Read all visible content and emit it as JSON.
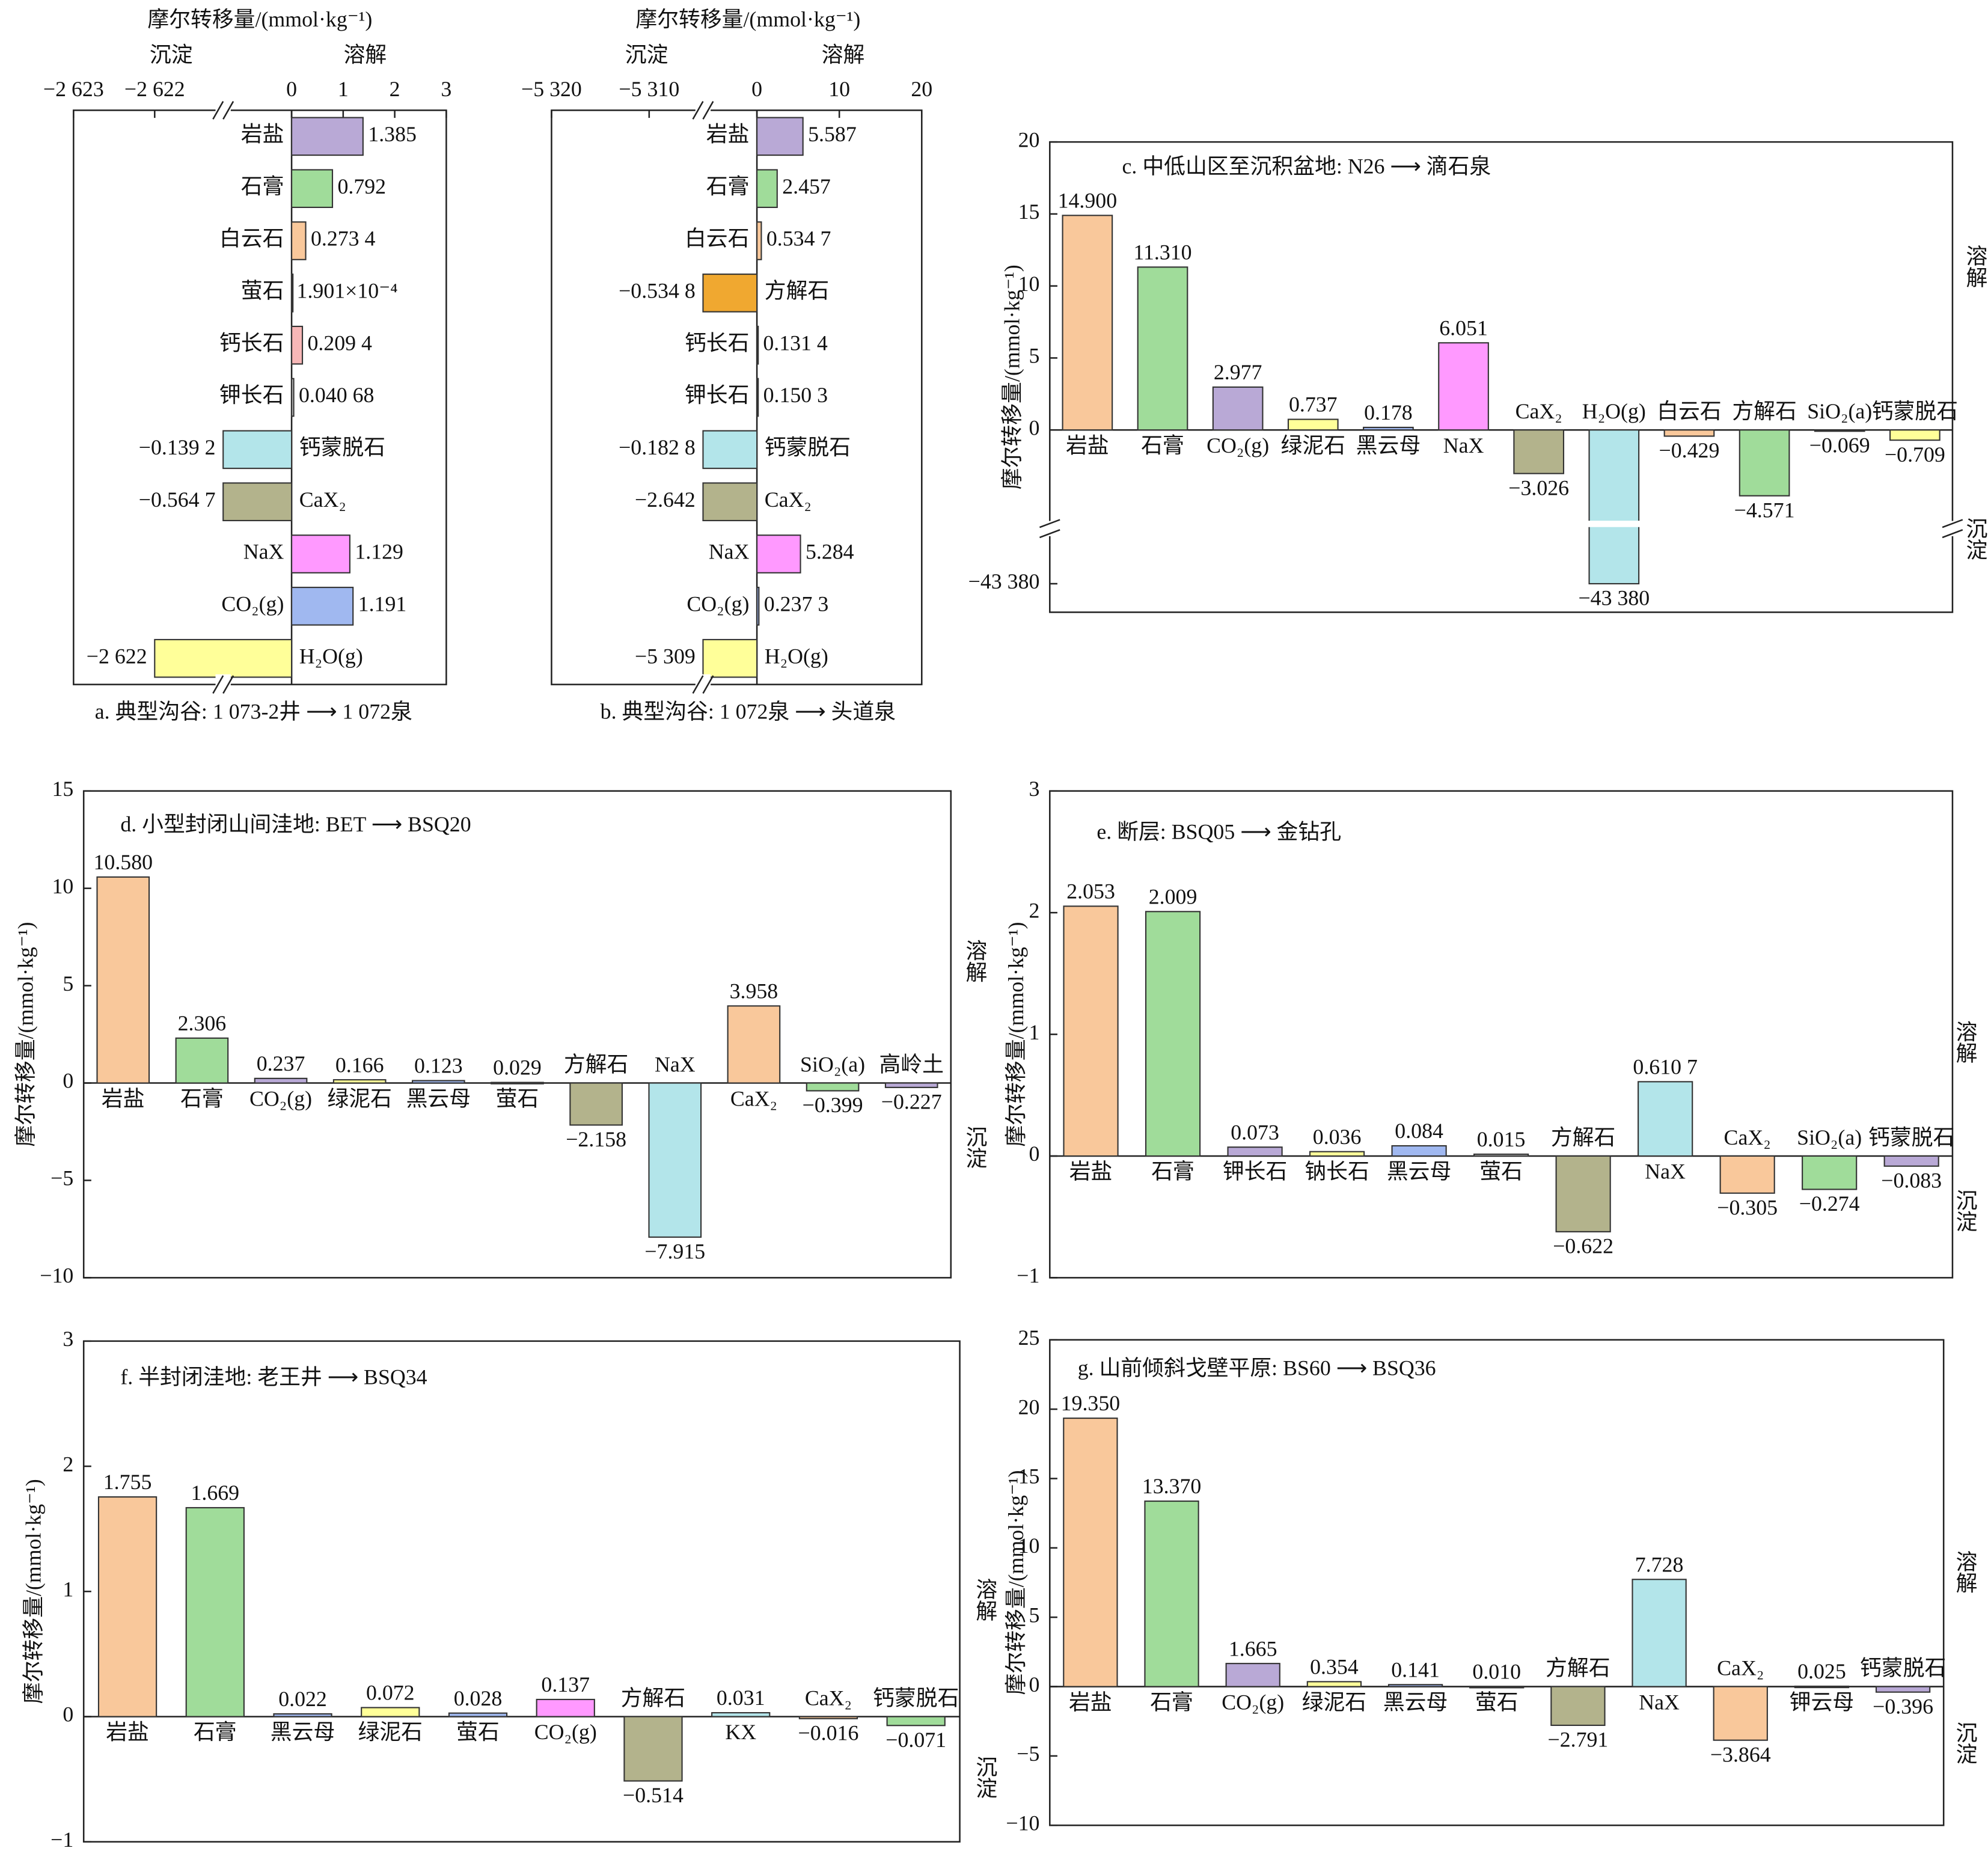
{
  "chart_data": [
    {
      "type": "barh",
      "title": "a. 典型沟谷: 1 073-2井 ⟶ 1 072泉",
      "xlabel": "摩尔转移量/(mmol·kg⁻¹)",
      "annotations": [
        "沉淀",
        "溶解"
      ],
      "categories": [
        "岩盐",
        "石膏",
        "白云石",
        "萤石",
        "钙长石",
        "钾长石",
        "钙蒙脱石",
        "CaX₂",
        "NaX",
        "CO₂(g)",
        "H₂O(g)"
      ],
      "values": [
        1.385,
        0.792,
        0.2734,
        0.0001901,
        0.2094,
        0.04068,
        -0.1392,
        -0.5647,
        1.129,
        1.191,
        -2622
      ],
      "value_labels": [
        "1.385",
        "0.792",
        "0.273 4",
        "1.901×10⁻⁴",
        "0.209 4",
        "0.040 68",
        "−0.139 2",
        "−0.564 7",
        "1.129",
        "1.191",
        "−2 622"
      ],
      "colors": [
        "#b9a9d6",
        "#a0dc9a",
        "#f9c89b",
        "#8fb3e8",
        "#f7b7b7",
        "#cccccc",
        "#b3e5ea",
        "#b3b38c",
        "#ff99ff",
        "#a0b8f0",
        "#ffff99"
      ],
      "xlim": [
        -2623,
        3
      ],
      "xbreak": [
        -2622,
        0
      ],
      "xticks": [
        {
          "value": -2623,
          "label": "−2 623"
        },
        {
          "value": -2622,
          "label": "−2 622"
        },
        0,
        1,
        2,
        3
      ]
    },
    {
      "type": "barh",
      "title": "b. 典型沟谷: 1 072泉 ⟶ 头道泉",
      "xlabel": "摩尔转移量/(mmol·kg⁻¹)",
      "annotations": [
        "沉淀",
        "溶解"
      ],
      "categories": [
        "岩盐",
        "石膏",
        "白云石",
        "方解石",
        "钙长石",
        "钾长石",
        "钙蒙脱石",
        "CaX₂",
        "NaX",
        "CO₂(g)",
        "H₂O(g)"
      ],
      "values": [
        5.587,
        2.457,
        0.5347,
        -0.5348,
        0.1314,
        0.1503,
        -0.1828,
        -2.642,
        5.284,
        0.2373,
        -5309
      ],
      "value_labels": [
        "5.587",
        "2.457",
        "0.534 7",
        "−0.534 8",
        "0.131 4",
        "0.150 3",
        "−0.182 8",
        "−2.642",
        "5.284",
        "0.237 3",
        "−5 309"
      ],
      "colors": [
        "#b9a9d6",
        "#a0dc9a",
        "#f9c89b",
        "#f0a830",
        "#f7b7b7",
        "#cccccc",
        "#b3e5ea",
        "#b3b38c",
        "#ff99ff",
        "#a0b8f0",
        "#ffff99"
      ],
      "xlim": [
        -5320,
        20
      ],
      "xbreak": [
        -5310,
        0
      ],
      "xticks": [
        {
          "value": -5320,
          "label": "−5 320"
        },
        {
          "value": -5310,
          "label": "−5 310"
        },
        0,
        10,
        20
      ]
    },
    {
      "type": "bar",
      "title": "c. 中低山区至沉积盆地: N26 ⟶ 滴石泉",
      "ylabel": "摩尔转移量/(mmol·kg⁻¹)",
      "annotations": [
        "溶解",
        "沉淀"
      ],
      "categories": [
        "岩盐",
        "石膏",
        "CO₂(g)",
        "绿泥石",
        "黑云母",
        "NaX",
        "CaX₂",
        "H₂O(g)",
        "白云石",
        "方解石",
        "SiO₂(a)",
        "钙蒙脱石"
      ],
      "values": [
        14.9,
        11.31,
        2.977,
        0.737,
        0.178,
        6.051,
        -3.026,
        -43380,
        -0.429,
        -4.571,
        -0.069,
        -0.709
      ],
      "value_labels": [
        "14.900",
        "11.310",
        "2.977",
        "0.737",
        "0.178",
        "6.051",
        "−3.026",
        "−43 380",
        "−0.429",
        "−4.571",
        "−0.069",
        "−0.709"
      ],
      "colors": [
        "#f9c89b",
        "#a0dc9a",
        "#b9a9d6",
        "#ffff99",
        "#a0b8f0",
        "#ff99ff",
        "#b3b38c",
        "#b3e5ea",
        "#f9c89b",
        "#a0dc9a",
        "#a0b8f0",
        "#ffff99"
      ],
      "ylim": [
        -43382,
        20
      ],
      "ybreak": [
        -43378,
        -5
      ],
      "yticks": [
        {
          "value": -43380,
          "label": "−43 380"
        },
        0,
        5,
        10,
        15,
        20
      ]
    },
    {
      "type": "bar",
      "title": "d. 小型封闭山间洼地: BET ⟶ BSQ20",
      "ylabel": "摩尔转移量/(mmol·kg⁻¹)",
      "annotations": [
        "溶解",
        "沉淀"
      ],
      "categories": [
        "岩盐",
        "石膏",
        "CO₂(g)",
        "绿泥石",
        "黑云母",
        "萤石",
        "方解石",
        "NaX",
        "CaX₂",
        "SiO₂(a)",
        "高岭土"
      ],
      "values": [
        10.58,
        2.306,
        0.237,
        0.166,
        0.123,
        0.029,
        -2.158,
        -7.915,
        3.958,
        -0.399,
        -0.227
      ],
      "value_labels": [
        "10.580",
        "2.306",
        "0.237",
        "0.166",
        "0.123",
        "0.029",
        "−2.158",
        "−7.915",
        "3.958",
        "−0.399",
        "−0.227"
      ],
      "colors": [
        "#f9c89b",
        "#a0dc9a",
        "#b9a9d6",
        "#ffff99",
        "#a0b8f0",
        "#c0c0c0",
        "#b3b38c",
        "#b3e5ea",
        "#f9c89b",
        "#a0dc9a",
        "#b9a9d6"
      ],
      "ylim": [
        -10,
        15
      ],
      "yticks": [
        {
          "value": -10,
          "label": "−10"
        },
        {
          "value": -5,
          "label": "−5"
        },
        0,
        5,
        10,
        15
      ]
    },
    {
      "type": "bar",
      "title": "e. 断层: BSQ05 ⟶ 金钻孔",
      "ylabel": "摩尔转移量/(mmol·kg⁻¹)",
      "annotations": [
        "溶解",
        "沉淀"
      ],
      "categories": [
        "岩盐",
        "石膏",
        "钾长石",
        "钠长石",
        "黑云母",
        "萤石",
        "方解石",
        "NaX",
        "CaX₂",
        "SiO₂(a)",
        "钙蒙脱石"
      ],
      "values": [
        2.053,
        2.009,
        0.073,
        0.036,
        0.084,
        0.015,
        -0.622,
        0.6107,
        -0.305,
        -0.274,
        -0.083
      ],
      "value_labels": [
        "2.053",
        "2.009",
        "0.073",
        "0.036",
        "0.084",
        "0.015",
        "−0.622",
        "0.610 7",
        "−0.305",
        "−0.274",
        "−0.083"
      ],
      "colors": [
        "#f9c89b",
        "#a0dc9a",
        "#b9a9d6",
        "#ffff99",
        "#a0b8f0",
        "#c0c0c0",
        "#b3b38c",
        "#b3e5ea",
        "#f9c89b",
        "#a0dc9a",
        "#b9a9d6"
      ],
      "ylim": [
        -1,
        3
      ],
      "yticks": [
        {
          "value": -1,
          "label": "−1"
        },
        0,
        1,
        2,
        3
      ]
    },
    {
      "type": "bar",
      "title": "f. 半封闭洼地: 老王井 ⟶ BSQ34",
      "ylabel": "摩尔转移量/(mmol·kg⁻¹)",
      "annotations": [
        "溶解",
        "沉淀"
      ],
      "categories": [
        "岩盐",
        "石膏",
        "黑云母",
        "绿泥石",
        "萤石",
        "CO₂(g)",
        "方解石",
        "KX",
        "CaX₂",
        "钙蒙脱石"
      ],
      "values": [
        1.755,
        1.669,
        0.022,
        0.072,
        0.028,
        0.137,
        -0.514,
        0.031,
        -0.016,
        -0.071
      ],
      "value_labels": [
        "1.755",
        "1.669",
        "0.022",
        "0.072",
        "0.028",
        "0.137",
        "−0.514",
        "0.031",
        "−0.016",
        "−0.071"
      ],
      "colors": [
        "#f9c89b",
        "#a0dc9a",
        "#a0b8f0",
        "#ffff99",
        "#a0b8f0",
        "#ff99ff",
        "#b3b38c",
        "#b3e5ea",
        "#f9c89b",
        "#a0dc9a"
      ],
      "ylim": [
        -1,
        3
      ],
      "yticks": [
        {
          "value": -1,
          "label": "−1"
        },
        0,
        1,
        2,
        3
      ]
    },
    {
      "type": "bar",
      "title": "g. 山前倾斜戈壁平原: BS60 ⟶ BSQ36",
      "ylabel": "摩尔转移量/(mmol·kg⁻¹)",
      "annotations": [
        "溶解",
        "沉淀"
      ],
      "categories": [
        "岩盐",
        "石膏",
        "CO₂(g)",
        "绿泥石",
        "黑云母",
        "萤石",
        "方解石",
        "NaX",
        "CaX₂",
        "钾云母",
        "钙蒙脱石"
      ],
      "values": [
        19.35,
        13.37,
        1.665,
        0.354,
        0.141,
        0.01,
        -2.791,
        7.728,
        -3.864,
        0.025,
        -0.396
      ],
      "value_labels": [
        "19.350",
        "13.370",
        "1.665",
        "0.354",
        "0.141",
        "0.010",
        "−2.791",
        "7.728",
        "−3.864",
        "0.025",
        "−0.396"
      ],
      "colors": [
        "#f9c89b",
        "#a0dc9a",
        "#b9a9d6",
        "#ffff99",
        "#a0b8f0",
        "#c0c0c0",
        "#b3b38c",
        "#b3e5ea",
        "#f9c89b",
        "#a0dc9a",
        "#b9a9d6"
      ],
      "ylim": [
        -10,
        25
      ],
      "yticks": [
        {
          "value": -10,
          "label": "−10"
        },
        {
          "value": -5,
          "label": "−5"
        },
        0,
        5,
        10,
        15,
        20,
        25
      ]
    }
  ]
}
